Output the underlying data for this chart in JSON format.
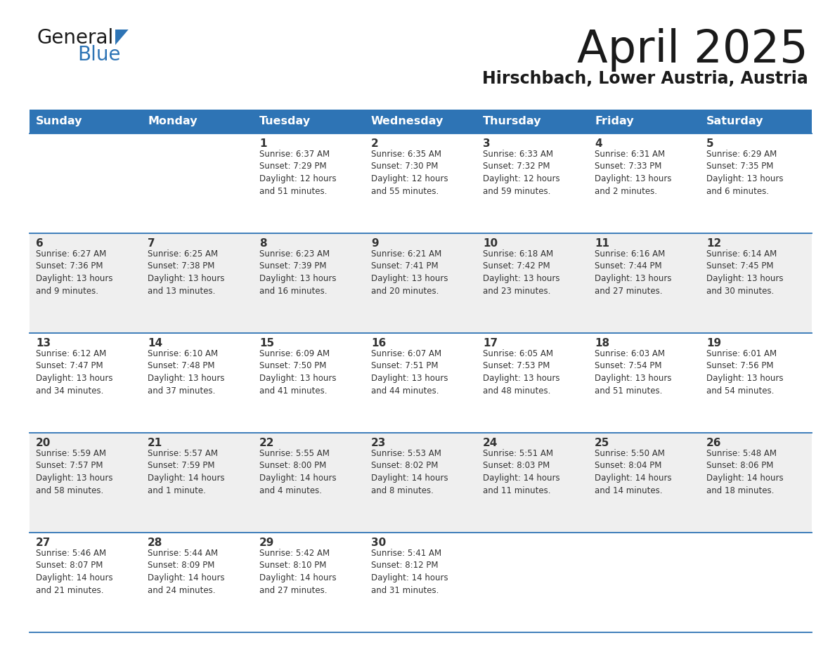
{
  "title": "April 2025",
  "subtitle": "Hirschbach, Lower Austria, Austria",
  "header_color": "#2e74b5",
  "header_text_color": "#ffffff",
  "cell_bg_white": "#ffffff",
  "cell_bg_gray": "#efefef",
  "border_color": "#2e74b5",
  "title_color": "#1a1a1a",
  "subtitle_color": "#1a1a1a",
  "text_color": "#333333",
  "days_of_week": [
    "Sunday",
    "Monday",
    "Tuesday",
    "Wednesday",
    "Thursday",
    "Friday",
    "Saturday"
  ],
  "weeks": [
    [
      {
        "day": "",
        "sunrise": "",
        "sunset": "",
        "daylight": ""
      },
      {
        "day": "",
        "sunrise": "",
        "sunset": "",
        "daylight": ""
      },
      {
        "day": "1",
        "sunrise": "Sunrise: 6:37 AM",
        "sunset": "Sunset: 7:29 PM",
        "daylight": "Daylight: 12 hours\nand 51 minutes."
      },
      {
        "day": "2",
        "sunrise": "Sunrise: 6:35 AM",
        "sunset": "Sunset: 7:30 PM",
        "daylight": "Daylight: 12 hours\nand 55 minutes."
      },
      {
        "day": "3",
        "sunrise": "Sunrise: 6:33 AM",
        "sunset": "Sunset: 7:32 PM",
        "daylight": "Daylight: 12 hours\nand 59 minutes."
      },
      {
        "day": "4",
        "sunrise": "Sunrise: 6:31 AM",
        "sunset": "Sunset: 7:33 PM",
        "daylight": "Daylight: 13 hours\nand 2 minutes."
      },
      {
        "day": "5",
        "sunrise": "Sunrise: 6:29 AM",
        "sunset": "Sunset: 7:35 PM",
        "daylight": "Daylight: 13 hours\nand 6 minutes."
      }
    ],
    [
      {
        "day": "6",
        "sunrise": "Sunrise: 6:27 AM",
        "sunset": "Sunset: 7:36 PM",
        "daylight": "Daylight: 13 hours\nand 9 minutes."
      },
      {
        "day": "7",
        "sunrise": "Sunrise: 6:25 AM",
        "sunset": "Sunset: 7:38 PM",
        "daylight": "Daylight: 13 hours\nand 13 minutes."
      },
      {
        "day": "8",
        "sunrise": "Sunrise: 6:23 AM",
        "sunset": "Sunset: 7:39 PM",
        "daylight": "Daylight: 13 hours\nand 16 minutes."
      },
      {
        "day": "9",
        "sunrise": "Sunrise: 6:21 AM",
        "sunset": "Sunset: 7:41 PM",
        "daylight": "Daylight: 13 hours\nand 20 minutes."
      },
      {
        "day": "10",
        "sunrise": "Sunrise: 6:18 AM",
        "sunset": "Sunset: 7:42 PM",
        "daylight": "Daylight: 13 hours\nand 23 minutes."
      },
      {
        "day": "11",
        "sunrise": "Sunrise: 6:16 AM",
        "sunset": "Sunset: 7:44 PM",
        "daylight": "Daylight: 13 hours\nand 27 minutes."
      },
      {
        "day": "12",
        "sunrise": "Sunrise: 6:14 AM",
        "sunset": "Sunset: 7:45 PM",
        "daylight": "Daylight: 13 hours\nand 30 minutes."
      }
    ],
    [
      {
        "day": "13",
        "sunrise": "Sunrise: 6:12 AM",
        "sunset": "Sunset: 7:47 PM",
        "daylight": "Daylight: 13 hours\nand 34 minutes."
      },
      {
        "day": "14",
        "sunrise": "Sunrise: 6:10 AM",
        "sunset": "Sunset: 7:48 PM",
        "daylight": "Daylight: 13 hours\nand 37 minutes."
      },
      {
        "day": "15",
        "sunrise": "Sunrise: 6:09 AM",
        "sunset": "Sunset: 7:50 PM",
        "daylight": "Daylight: 13 hours\nand 41 minutes."
      },
      {
        "day": "16",
        "sunrise": "Sunrise: 6:07 AM",
        "sunset": "Sunset: 7:51 PM",
        "daylight": "Daylight: 13 hours\nand 44 minutes."
      },
      {
        "day": "17",
        "sunrise": "Sunrise: 6:05 AM",
        "sunset": "Sunset: 7:53 PM",
        "daylight": "Daylight: 13 hours\nand 48 minutes."
      },
      {
        "day": "18",
        "sunrise": "Sunrise: 6:03 AM",
        "sunset": "Sunset: 7:54 PM",
        "daylight": "Daylight: 13 hours\nand 51 minutes."
      },
      {
        "day": "19",
        "sunrise": "Sunrise: 6:01 AM",
        "sunset": "Sunset: 7:56 PM",
        "daylight": "Daylight: 13 hours\nand 54 minutes."
      }
    ],
    [
      {
        "day": "20",
        "sunrise": "Sunrise: 5:59 AM",
        "sunset": "Sunset: 7:57 PM",
        "daylight": "Daylight: 13 hours\nand 58 minutes."
      },
      {
        "day": "21",
        "sunrise": "Sunrise: 5:57 AM",
        "sunset": "Sunset: 7:59 PM",
        "daylight": "Daylight: 14 hours\nand 1 minute."
      },
      {
        "day": "22",
        "sunrise": "Sunrise: 5:55 AM",
        "sunset": "Sunset: 8:00 PM",
        "daylight": "Daylight: 14 hours\nand 4 minutes."
      },
      {
        "day": "23",
        "sunrise": "Sunrise: 5:53 AM",
        "sunset": "Sunset: 8:02 PM",
        "daylight": "Daylight: 14 hours\nand 8 minutes."
      },
      {
        "day": "24",
        "sunrise": "Sunrise: 5:51 AM",
        "sunset": "Sunset: 8:03 PM",
        "daylight": "Daylight: 14 hours\nand 11 minutes."
      },
      {
        "day": "25",
        "sunrise": "Sunrise: 5:50 AM",
        "sunset": "Sunset: 8:04 PM",
        "daylight": "Daylight: 14 hours\nand 14 minutes."
      },
      {
        "day": "26",
        "sunrise": "Sunrise: 5:48 AM",
        "sunset": "Sunset: 8:06 PM",
        "daylight": "Daylight: 14 hours\nand 18 minutes."
      }
    ],
    [
      {
        "day": "27",
        "sunrise": "Sunrise: 5:46 AM",
        "sunset": "Sunset: 8:07 PM",
        "daylight": "Daylight: 14 hours\nand 21 minutes."
      },
      {
        "day": "28",
        "sunrise": "Sunrise: 5:44 AM",
        "sunset": "Sunset: 8:09 PM",
        "daylight": "Daylight: 14 hours\nand 24 minutes."
      },
      {
        "day": "29",
        "sunrise": "Sunrise: 5:42 AM",
        "sunset": "Sunset: 8:10 PM",
        "daylight": "Daylight: 14 hours\nand 27 minutes."
      },
      {
        "day": "30",
        "sunrise": "Sunrise: 5:41 AM",
        "sunset": "Sunset: 8:12 PM",
        "daylight": "Daylight: 14 hours\nand 31 minutes."
      },
      {
        "day": "",
        "sunrise": "",
        "sunset": "",
        "daylight": ""
      },
      {
        "day": "",
        "sunrise": "",
        "sunset": "",
        "daylight": ""
      },
      {
        "day": "",
        "sunrise": "",
        "sunset": "",
        "daylight": ""
      }
    ]
  ]
}
